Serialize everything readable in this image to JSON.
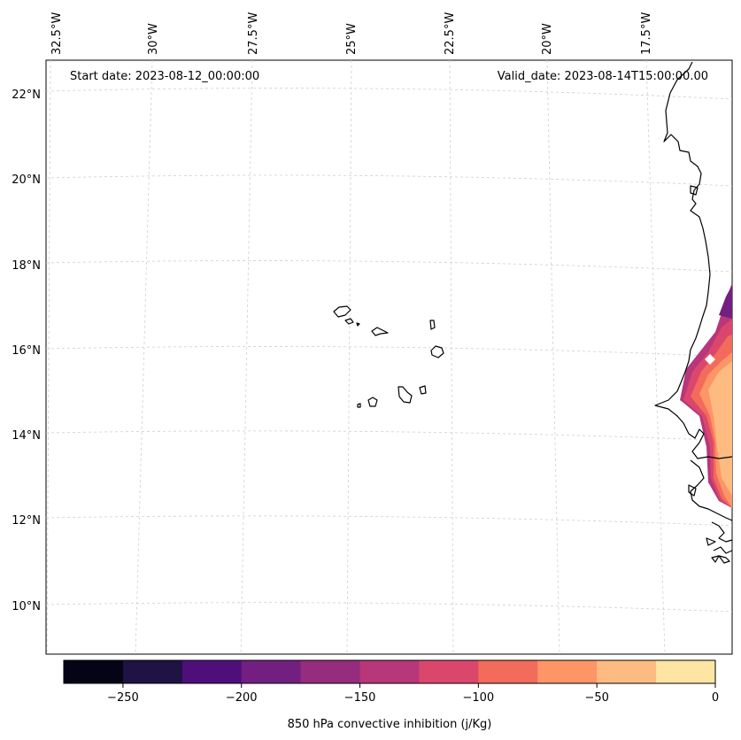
{
  "header": {
    "start_date": "Start date: 2023-08-12_00:00:00",
    "valid_date": "Valid_date: 2023-08-14T15:00:00.00"
  },
  "map": {
    "longitude_labels": [
      "32.5°W",
      "30°W",
      "27.5°W",
      "25°W",
      "22.5°W",
      "20°W",
      "17.5°W"
    ],
    "latitude_labels": [
      "22°N",
      "20°N",
      "18°N",
      "16°N",
      "14°N",
      "12°N",
      "10°N"
    ]
  },
  "colorbar": {
    "label": "850 hPa convective inhibition (j/Kg)",
    "min": -275,
    "max": 0,
    "ticks": [
      "−250",
      "−200",
      "−150",
      "−100",
      "−50",
      "0"
    ],
    "tick_values": [
      -250,
      -200,
      -150,
      -100,
      -50,
      0
    ],
    "colors": [
      "#050416",
      "#1f1244",
      "#4e0f7a",
      "#731f81",
      "#962c7e",
      "#b8367a",
      "#db476c",
      "#f26b5b",
      "#fd9567",
      "#febb81",
      "#fee5a4"
    ]
  }
}
